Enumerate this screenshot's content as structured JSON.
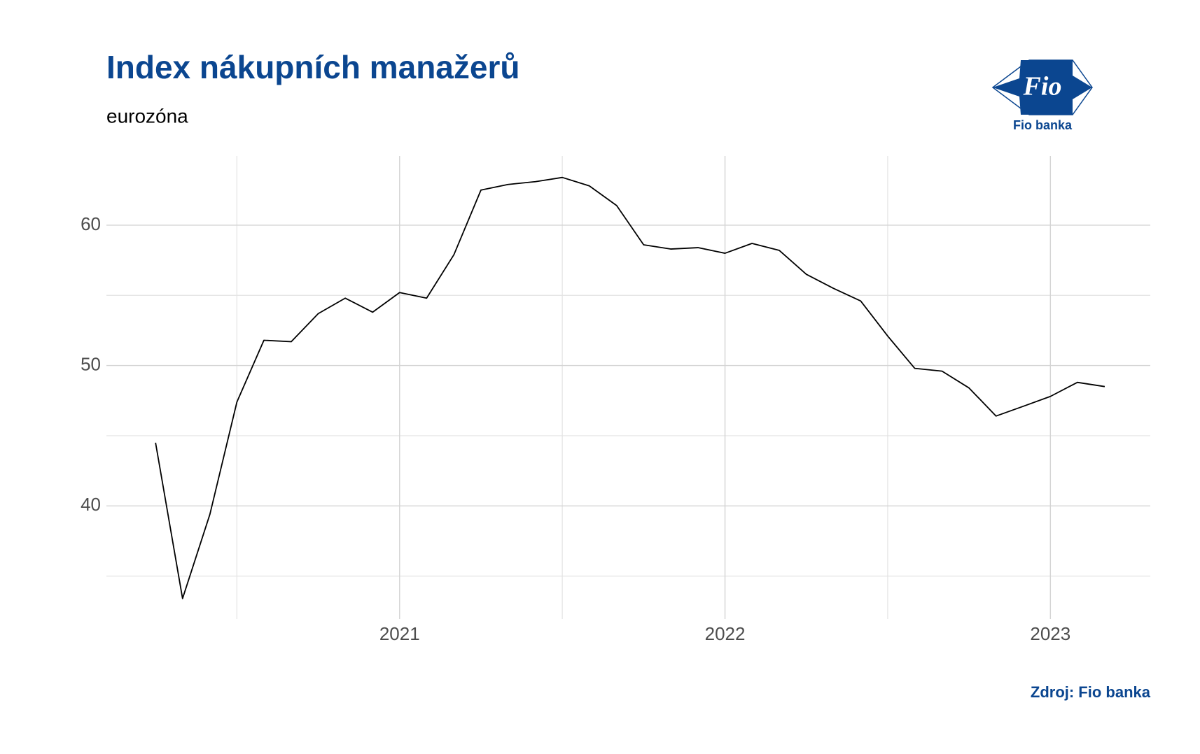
{
  "chart_data": {
    "type": "line",
    "title": "Index nákupních manažerů",
    "subtitle": "eurozóna",
    "source": "Zdroj: Fio banka",
    "x": [
      2020.25,
      2020.333,
      2020.417,
      2020.5,
      2020.583,
      2020.667,
      2020.75,
      2020.833,
      2020.917,
      2021.0,
      2021.083,
      2021.167,
      2021.25,
      2021.333,
      2021.417,
      2021.5,
      2021.583,
      2021.667,
      2021.75,
      2021.833,
      2021.917,
      2022.0,
      2022.083,
      2022.167,
      2022.25,
      2022.333,
      2022.417,
      2022.5,
      2022.583,
      2022.667,
      2022.75,
      2022.833,
      2022.917,
      2023.0,
      2023.083,
      2023.167
    ],
    "series": [
      {
        "color": "#000000",
        "values": [
          44.5,
          33.4,
          39.4,
          47.4,
          51.8,
          51.7,
          53.7,
          54.8,
          53.8,
          55.2,
          54.8,
          57.9,
          62.5,
          62.9,
          63.1,
          63.4,
          62.8,
          61.4,
          58.6,
          58.3,
          58.4,
          58.0,
          58.7,
          58.2,
          56.5,
          55.5,
          54.6,
          52.1,
          49.8,
          49.6,
          48.4,
          46.4,
          47.1,
          47.8,
          48.8,
          48.5
        ]
      }
    ],
    "xlim": [
      2020.099,
      2023.307
    ],
    "xticks": [
      2021,
      2022,
      2023
    ],
    "xminor": [
      2020.5,
      2021.5,
      2022.5
    ],
    "ylim": [
      31.94,
      64.93
    ],
    "yticks": [
      40,
      50,
      60
    ],
    "yminor": [
      35,
      45,
      55
    ],
    "grid": true
  },
  "logo": {
    "mark": "Fio",
    "caption": "Fio banka"
  }
}
